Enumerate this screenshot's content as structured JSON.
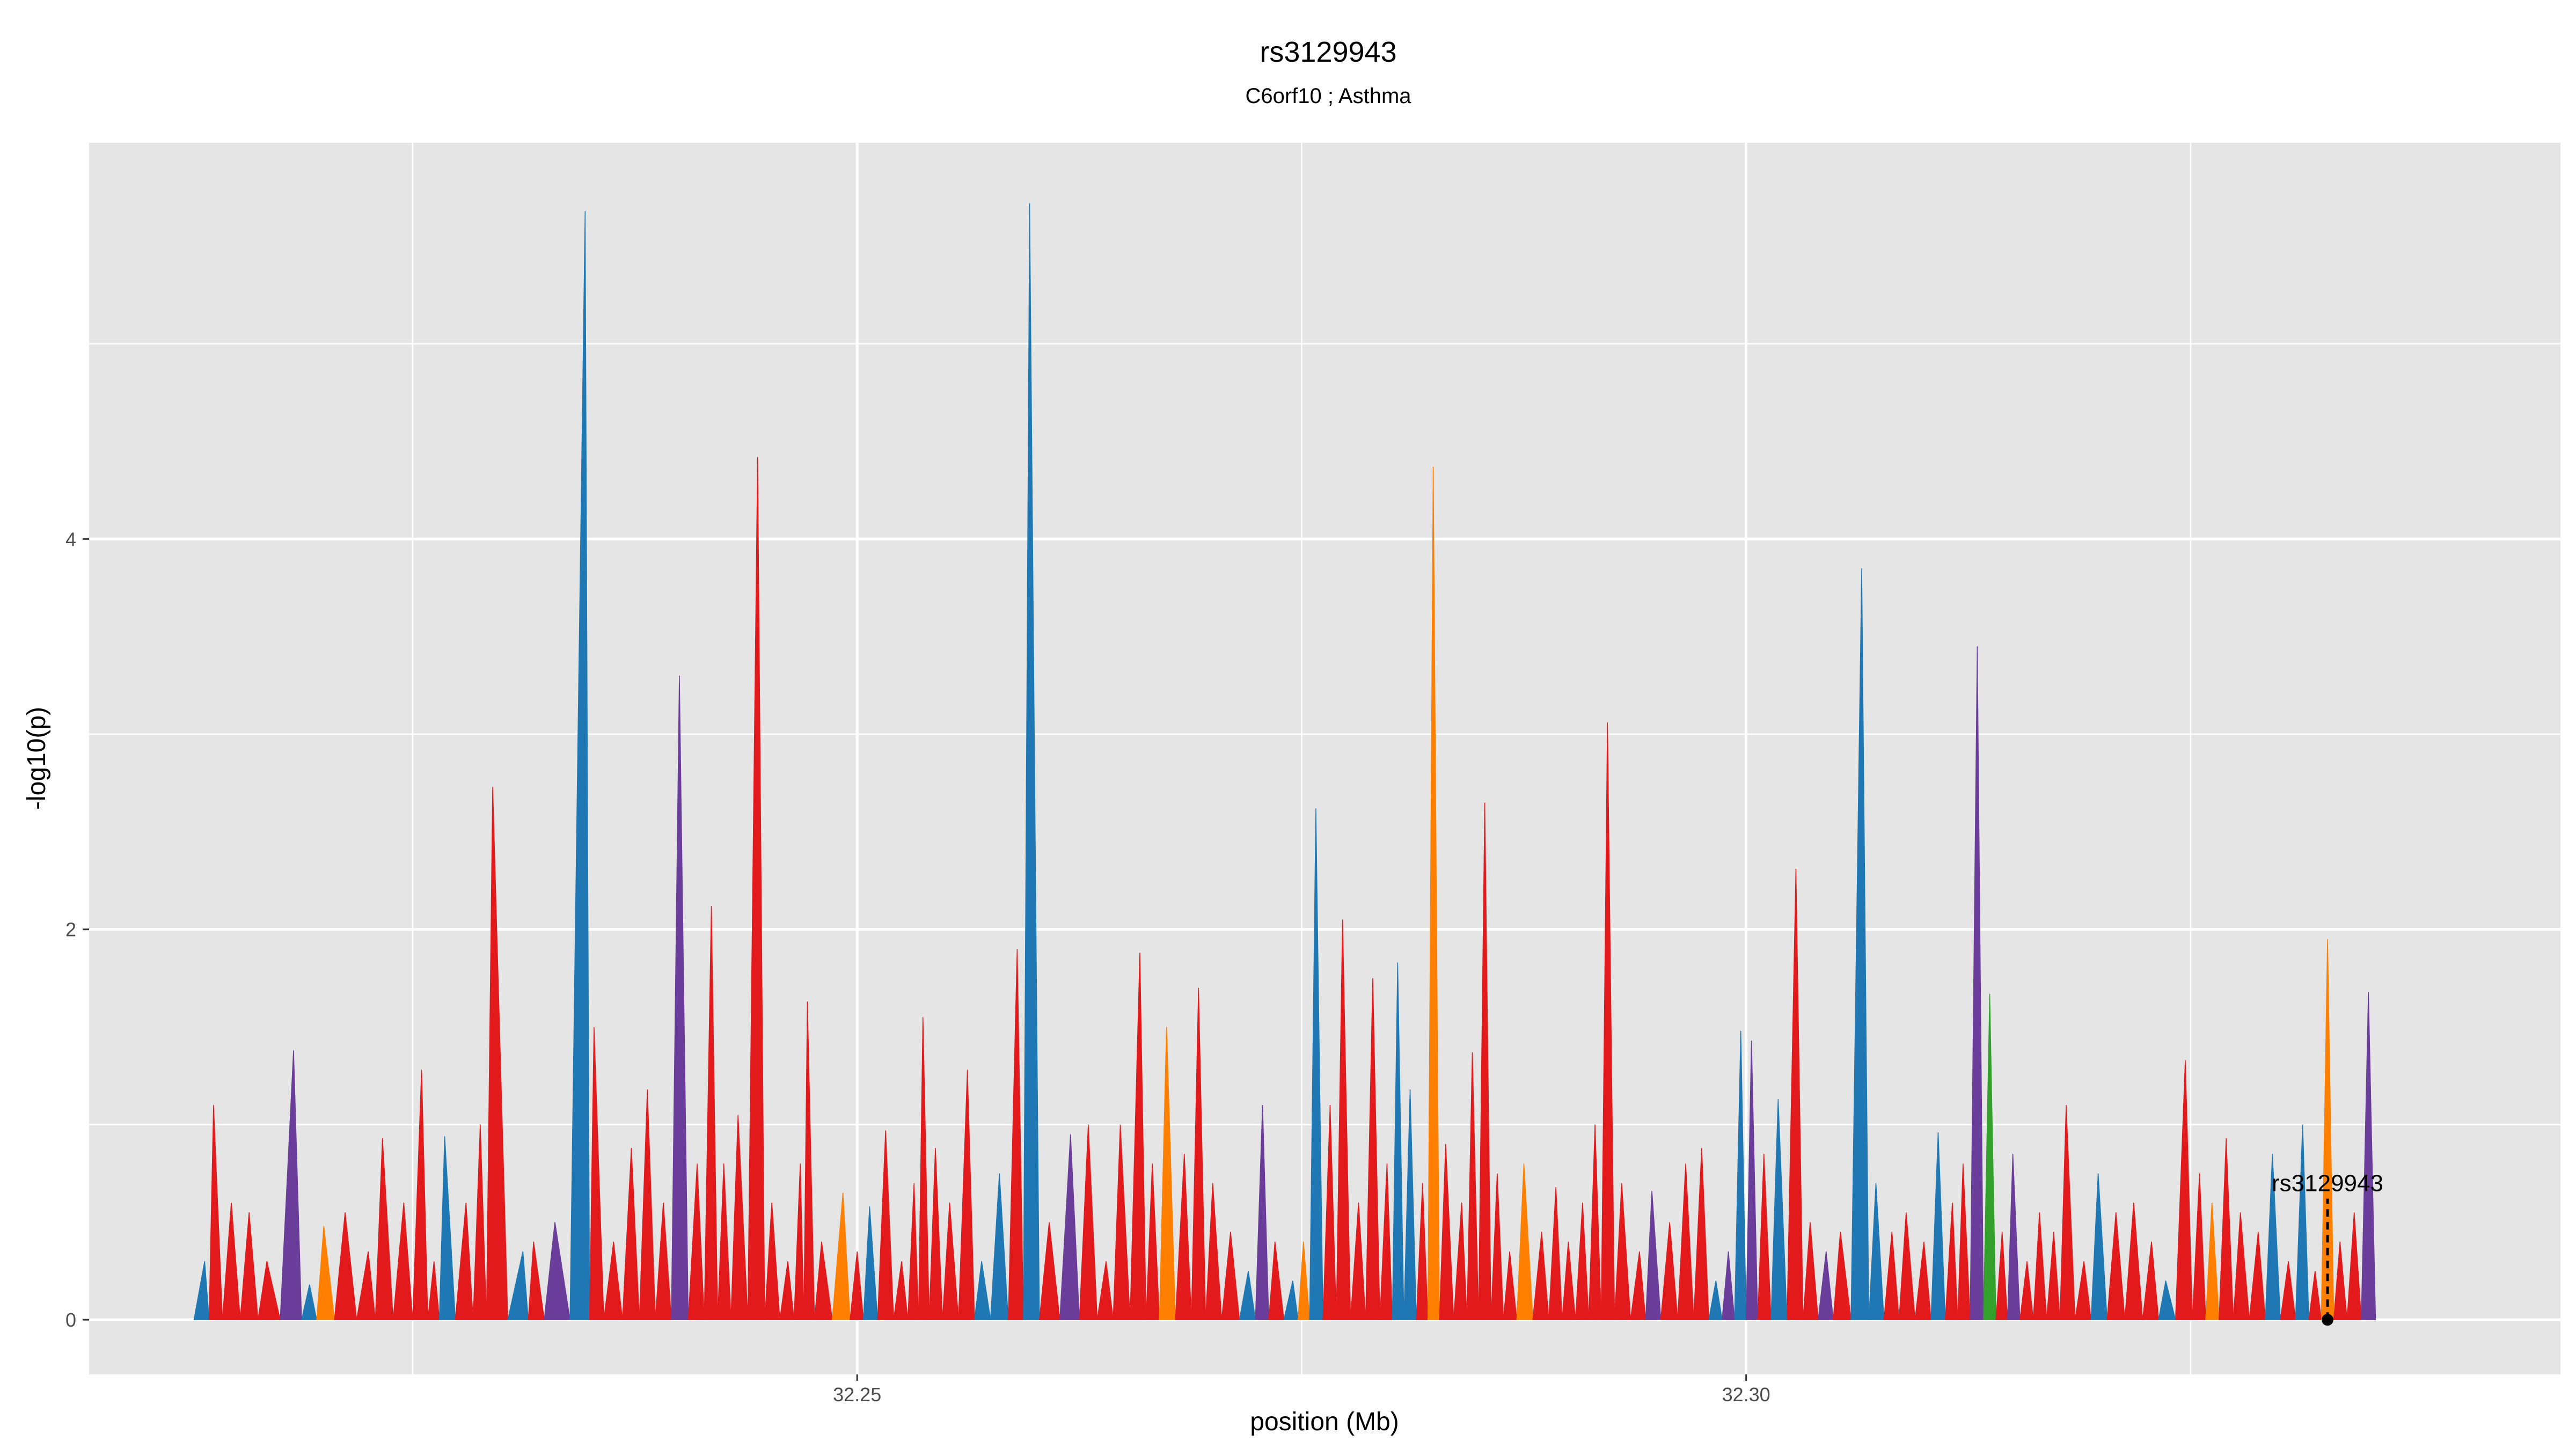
{
  "chart_data": {
    "type": "area",
    "title": "rs3129943",
    "subtitle": "C6orf10 ; Asthma",
    "xlabel": "position (Mb)",
    "ylabel": "-log10(p)",
    "xlim": [
      32.2068,
      32.3458
    ],
    "ylim": [
      -0.28,
      6.03
    ],
    "x_ticks": [
      32.25,
      32.3
    ],
    "x_tick_labels": [
      "32.25",
      "32.30"
    ],
    "y_ticks": [
      0,
      2,
      4
    ],
    "y_tick_labels": [
      "0",
      "2",
      "4"
    ],
    "grid": true,
    "legend": "none",
    "palette": {
      "red": "#e31a1c",
      "blue": "#1f78b4",
      "orange": "#ff7f00",
      "purple": "#6a3d9a",
      "green": "#33a02c",
      "panel": "#e5e5e5",
      "grid": "#ffffff"
    },
    "peaks": [
      {
        "x": 32.2133,
        "y": 0.3,
        "color": "blue"
      },
      {
        "x": 32.2138,
        "y": 1.1,
        "color": "red"
      },
      {
        "x": 32.2148,
        "y": 0.6,
        "color": "red"
      },
      {
        "x": 32.2158,
        "y": 0.55,
        "color": "red"
      },
      {
        "x": 32.2168,
        "y": 0.3,
        "color": "red"
      },
      {
        "x": 32.2183,
        "y": 1.38,
        "color": "purple"
      },
      {
        "x": 32.2192,
        "y": 0.18,
        "color": "blue"
      },
      {
        "x": 32.22,
        "y": 0.48,
        "color": "orange"
      },
      {
        "x": 32.2212,
        "y": 0.55,
        "color": "red"
      },
      {
        "x": 32.2225,
        "y": 0.35,
        "color": "red"
      },
      {
        "x": 32.2233,
        "y": 0.93,
        "color": "red"
      },
      {
        "x": 32.2245,
        "y": 0.6,
        "color": "red"
      },
      {
        "x": 32.2255,
        "y": 1.28,
        "color": "red"
      },
      {
        "x": 32.2262,
        "y": 0.3,
        "color": "red"
      },
      {
        "x": 32.2268,
        "y": 0.94,
        "color": "blue"
      },
      {
        "x": 32.228,
        "y": 0.6,
        "color": "red"
      },
      {
        "x": 32.2288,
        "y": 1.0,
        "color": "red"
      },
      {
        "x": 32.2295,
        "y": 2.73,
        "color": "red"
      },
      {
        "x": 32.2312,
        "y": 0.35,
        "color": "blue"
      },
      {
        "x": 32.2318,
        "y": 0.4,
        "color": "red"
      },
      {
        "x": 32.233,
        "y": 0.5,
        "color": "purple"
      },
      {
        "x": 32.2347,
        "y": 5.68,
        "color": "blue"
      },
      {
        "x": 32.2352,
        "y": 1.5,
        "color": "red"
      },
      {
        "x": 32.2363,
        "y": 0.4,
        "color": "red"
      },
      {
        "x": 32.2373,
        "y": 0.88,
        "color": "red"
      },
      {
        "x": 32.2382,
        "y": 1.18,
        "color": "red"
      },
      {
        "x": 32.2391,
        "y": 0.6,
        "color": "red"
      },
      {
        "x": 32.24,
        "y": 3.3,
        "color": "purple"
      },
      {
        "x": 32.241,
        "y": 0.8,
        "color": "red"
      },
      {
        "x": 32.2418,
        "y": 2.12,
        "color": "red"
      },
      {
        "x": 32.2425,
        "y": 0.8,
        "color": "red"
      },
      {
        "x": 32.2433,
        "y": 1.05,
        "color": "red"
      },
      {
        "x": 32.2444,
        "y": 4.42,
        "color": "red"
      },
      {
        "x": 32.2452,
        "y": 0.6,
        "color": "red"
      },
      {
        "x": 32.2461,
        "y": 0.3,
        "color": "red"
      },
      {
        "x": 32.2468,
        "y": 0.8,
        "color": "red"
      },
      {
        "x": 32.2472,
        "y": 1.63,
        "color": "red"
      },
      {
        "x": 32.248,
        "y": 0.4,
        "color": "red"
      },
      {
        "x": 32.2492,
        "y": 0.65,
        "color": "orange"
      },
      {
        "x": 32.25,
        "y": 0.35,
        "color": "red"
      },
      {
        "x": 32.2507,
        "y": 0.58,
        "color": "blue"
      },
      {
        "x": 32.2516,
        "y": 0.97,
        "color": "red"
      },
      {
        "x": 32.2525,
        "y": 0.3,
        "color": "red"
      },
      {
        "x": 32.2532,
        "y": 0.7,
        "color": "red"
      },
      {
        "x": 32.2537,
        "y": 1.55,
        "color": "red"
      },
      {
        "x": 32.2544,
        "y": 0.88,
        "color": "red"
      },
      {
        "x": 32.2552,
        "y": 0.6,
        "color": "red"
      },
      {
        "x": 32.2562,
        "y": 1.28,
        "color": "red"
      },
      {
        "x": 32.257,
        "y": 0.3,
        "color": "blue"
      },
      {
        "x": 32.258,
        "y": 0.75,
        "color": "blue"
      },
      {
        "x": 32.259,
        "y": 1.9,
        "color": "red"
      },
      {
        "x": 32.2597,
        "y": 5.72,
        "color": "blue"
      },
      {
        "x": 32.2608,
        "y": 0.5,
        "color": "red"
      },
      {
        "x": 32.262,
        "y": 0.95,
        "color": "purple"
      },
      {
        "x": 32.263,
        "y": 1.0,
        "color": "red"
      },
      {
        "x": 32.264,
        "y": 0.3,
        "color": "red"
      },
      {
        "x": 32.2648,
        "y": 1.0,
        "color": "red"
      },
      {
        "x": 32.2659,
        "y": 1.88,
        "color": "red"
      },
      {
        "x": 32.2666,
        "y": 0.8,
        "color": "red"
      },
      {
        "x": 32.2674,
        "y": 1.5,
        "color": "orange"
      },
      {
        "x": 32.2684,
        "y": 0.85,
        "color": "red"
      },
      {
        "x": 32.2692,
        "y": 1.7,
        "color": "red"
      },
      {
        "x": 32.27,
        "y": 0.7,
        "color": "red"
      },
      {
        "x": 32.271,
        "y": 0.45,
        "color": "red"
      },
      {
        "x": 32.272,
        "y": 0.25,
        "color": "blue"
      },
      {
        "x": 32.2728,
        "y": 1.1,
        "color": "purple"
      },
      {
        "x": 32.2735,
        "y": 0.4,
        "color": "red"
      },
      {
        "x": 32.2745,
        "y": 0.2,
        "color": "blue"
      },
      {
        "x": 32.2751,
        "y": 0.4,
        "color": "orange"
      },
      {
        "x": 32.2758,
        "y": 2.62,
        "color": "blue"
      },
      {
        "x": 32.2766,
        "y": 1.1,
        "color": "red"
      },
      {
        "x": 32.2773,
        "y": 2.05,
        "color": "red"
      },
      {
        "x": 32.2782,
        "y": 0.6,
        "color": "red"
      },
      {
        "x": 32.279,
        "y": 1.75,
        "color": "red"
      },
      {
        "x": 32.2798,
        "y": 0.8,
        "color": "red"
      },
      {
        "x": 32.2804,
        "y": 1.83,
        "color": "blue"
      },
      {
        "x": 32.2811,
        "y": 1.18,
        "color": "blue"
      },
      {
        "x": 32.2818,
        "y": 0.7,
        "color": "red"
      },
      {
        "x": 32.2824,
        "y": 4.37,
        "color": "orange"
      },
      {
        "x": 32.2831,
        "y": 0.9,
        "color": "red"
      },
      {
        "x": 32.284,
        "y": 0.6,
        "color": "red"
      },
      {
        "x": 32.2846,
        "y": 1.37,
        "color": "red"
      },
      {
        "x": 32.2853,
        "y": 2.65,
        "color": "red"
      },
      {
        "x": 32.286,
        "y": 0.75,
        "color": "red"
      },
      {
        "x": 32.2867,
        "y": 0.35,
        "color": "red"
      },
      {
        "x": 32.2875,
        "y": 0.8,
        "color": "orange"
      },
      {
        "x": 32.2885,
        "y": 0.45,
        "color": "red"
      },
      {
        "x": 32.2893,
        "y": 0.68,
        "color": "red"
      },
      {
        "x": 32.29,
        "y": 0.4,
        "color": "red"
      },
      {
        "x": 32.2908,
        "y": 0.6,
        "color": "red"
      },
      {
        "x": 32.2915,
        "y": 1.0,
        "color": "red"
      },
      {
        "x": 32.2922,
        "y": 3.06,
        "color": "red"
      },
      {
        "x": 32.293,
        "y": 0.7,
        "color": "red"
      },
      {
        "x": 32.294,
        "y": 0.35,
        "color": "red"
      },
      {
        "x": 32.2947,
        "y": 0.66,
        "color": "purple"
      },
      {
        "x": 32.2957,
        "y": 0.5,
        "color": "red"
      },
      {
        "x": 32.2966,
        "y": 0.8,
        "color": "red"
      },
      {
        "x": 32.2975,
        "y": 0.88,
        "color": "red"
      },
      {
        "x": 32.2983,
        "y": 0.2,
        "color": "blue"
      },
      {
        "x": 32.299,
        "y": 0.35,
        "color": "purple"
      },
      {
        "x": 32.2997,
        "y": 1.48,
        "color": "blue"
      },
      {
        "x": 32.3003,
        "y": 1.43,
        "color": "purple"
      },
      {
        "x": 32.301,
        "y": 0.85,
        "color": "red"
      },
      {
        "x": 32.3018,
        "y": 1.13,
        "color": "blue"
      },
      {
        "x": 32.3028,
        "y": 2.31,
        "color": "red"
      },
      {
        "x": 32.3036,
        "y": 0.5,
        "color": "red"
      },
      {
        "x": 32.3045,
        "y": 0.35,
        "color": "purple"
      },
      {
        "x": 32.3053,
        "y": 0.45,
        "color": "red"
      },
      {
        "x": 32.3065,
        "y": 3.85,
        "color": "blue"
      },
      {
        "x": 32.3073,
        "y": 0.7,
        "color": "blue"
      },
      {
        "x": 32.3082,
        "y": 0.45,
        "color": "red"
      },
      {
        "x": 32.309,
        "y": 0.55,
        "color": "red"
      },
      {
        "x": 32.31,
        "y": 0.4,
        "color": "red"
      },
      {
        "x": 32.3108,
        "y": 0.96,
        "color": "blue"
      },
      {
        "x": 32.3116,
        "y": 0.6,
        "color": "red"
      },
      {
        "x": 32.3122,
        "y": 0.8,
        "color": "red"
      },
      {
        "x": 32.313,
        "y": 3.45,
        "color": "purple"
      },
      {
        "x": 32.3137,
        "y": 1.67,
        "color": "green"
      },
      {
        "x": 32.3144,
        "y": 0.45,
        "color": "red"
      },
      {
        "x": 32.315,
        "y": 0.85,
        "color": "purple"
      },
      {
        "x": 32.3158,
        "y": 0.3,
        "color": "red"
      },
      {
        "x": 32.3165,
        "y": 0.55,
        "color": "red"
      },
      {
        "x": 32.3173,
        "y": 0.45,
        "color": "red"
      },
      {
        "x": 32.318,
        "y": 1.1,
        "color": "red"
      },
      {
        "x": 32.319,
        "y": 0.3,
        "color": "red"
      },
      {
        "x": 32.3198,
        "y": 0.75,
        "color": "blue"
      },
      {
        "x": 32.3208,
        "y": 0.55,
        "color": "red"
      },
      {
        "x": 32.3218,
        "y": 0.6,
        "color": "red"
      },
      {
        "x": 32.3228,
        "y": 0.4,
        "color": "red"
      },
      {
        "x": 32.3236,
        "y": 0.2,
        "color": "blue"
      },
      {
        "x": 32.3247,
        "y": 1.33,
        "color": "red"
      },
      {
        "x": 32.3255,
        "y": 0.75,
        "color": "red"
      },
      {
        "x": 32.3262,
        "y": 0.6,
        "color": "orange"
      },
      {
        "x": 32.327,
        "y": 0.93,
        "color": "red"
      },
      {
        "x": 32.3278,
        "y": 0.55,
        "color": "red"
      },
      {
        "x": 32.3288,
        "y": 0.45,
        "color": "red"
      },
      {
        "x": 32.3296,
        "y": 0.85,
        "color": "blue"
      },
      {
        "x": 32.3305,
        "y": 0.3,
        "color": "red"
      },
      {
        "x": 32.3313,
        "y": 1.0,
        "color": "blue"
      },
      {
        "x": 32.332,
        "y": 0.25,
        "color": "red"
      },
      {
        "x": 32.3327,
        "y": 1.95,
        "color": "orange"
      },
      {
        "x": 32.3334,
        "y": 0.4,
        "color": "red"
      },
      {
        "x": 32.3342,
        "y": 0.55,
        "color": "red"
      },
      {
        "x": 32.335,
        "y": 1.68,
        "color": "purple"
      }
    ],
    "highlight": {
      "label": "rs3129943",
      "x": 32.3327,
      "y": 0.0
    }
  }
}
